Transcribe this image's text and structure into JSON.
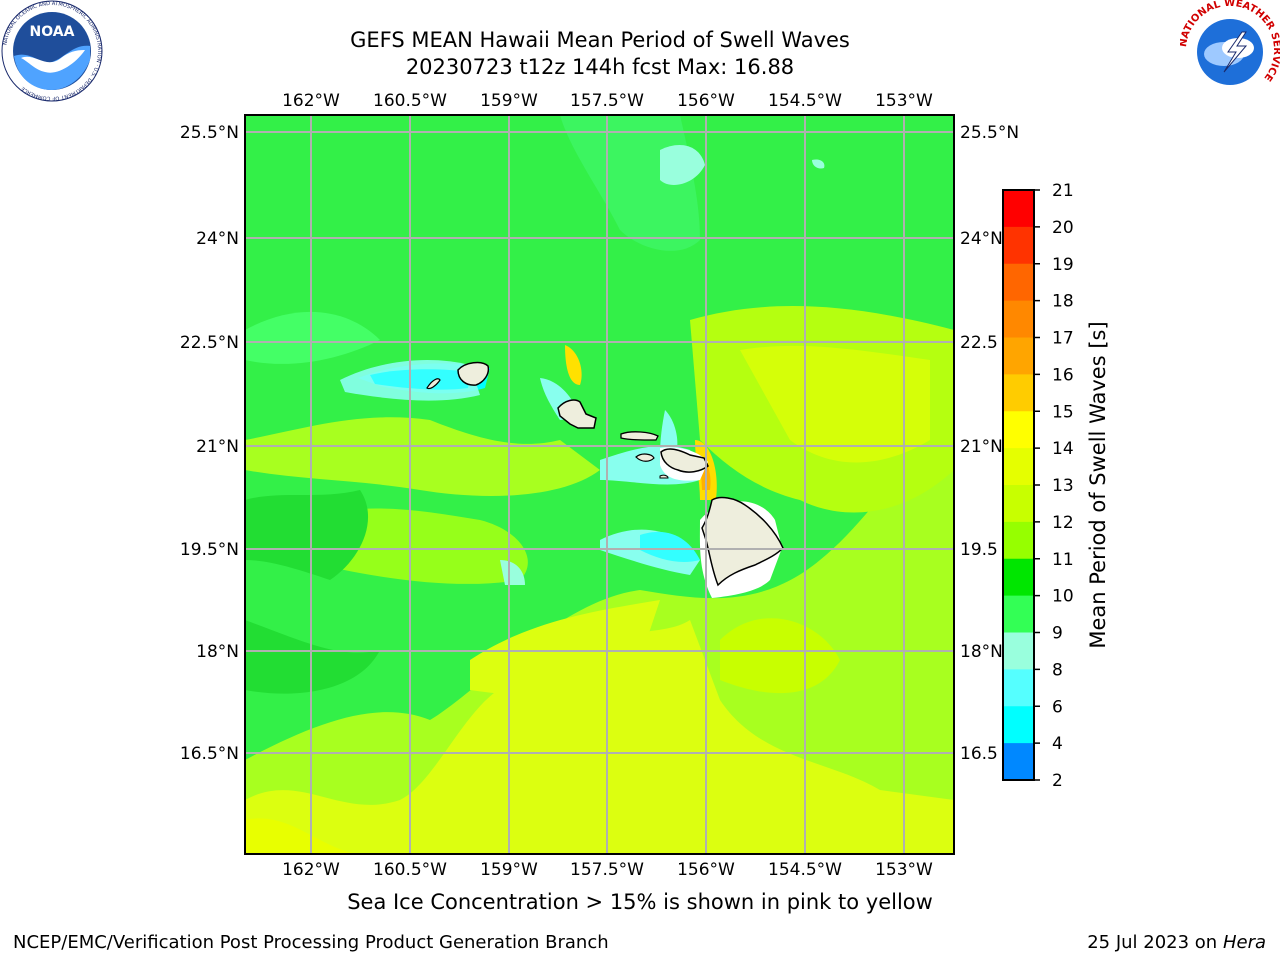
{
  "title": {
    "line1": "GEFS MEAN Hawaii Mean Period of Swell Waves",
    "line2": "20230723 t12z 144h fcst   Max: 16.88"
  },
  "map": {
    "lon_labels": [
      "162°W",
      "160.5°W",
      "159°W",
      "157.5°W",
      "156°W",
      "154.5°W",
      "153°W"
    ],
    "lat_labels": [
      "25.5°N",
      "24°N",
      "22.5°N",
      "21°N",
      "19.5°N",
      "18°N",
      "16.5°N"
    ],
    "lat_labels_right": [
      "25.5°N",
      "24°N",
      "22.5",
      "21°N",
      "19.5",
      "18°N",
      "16.5"
    ]
  },
  "colorbar": {
    "label": "Mean Period of Swell Waves [s]",
    "ticks": [
      "21",
      "20",
      "19",
      "18",
      "17",
      "16",
      "15",
      "14",
      "13",
      "12",
      "11",
      "10",
      "9",
      "8",
      "6",
      "4",
      "2"
    ],
    "colors": [
      "#ff0000",
      "#ff3300",
      "#ff6600",
      "#ff8800",
      "#ffa500",
      "#ffcc00",
      "#ffff00",
      "#e5ff00",
      "#c8ff00",
      "#96ff00",
      "#00e600",
      "#33ff55",
      "#99ffdd",
      "#55ffff",
      "#00ffff",
      "#0088ff",
      "#0000ff"
    ]
  },
  "note": "Sea Ice Concentration > 15% is shown in pink to yellow",
  "footer": {
    "left": "NCEP/EMC/Verification Post Processing Product Generation Branch",
    "date": "25 Jul 2023 on ",
    "machine": "Hera"
  },
  "logos": {
    "noaa_text": "NOAA",
    "noaa_ring": "NATIONAL OCEANIC AND ATMOSPHERIC ADMINISTRATION · U.S. DEPARTMENT OF COMMERCE",
    "nws_ring": "NATIONAL WEATHER SERVICE"
  }
}
